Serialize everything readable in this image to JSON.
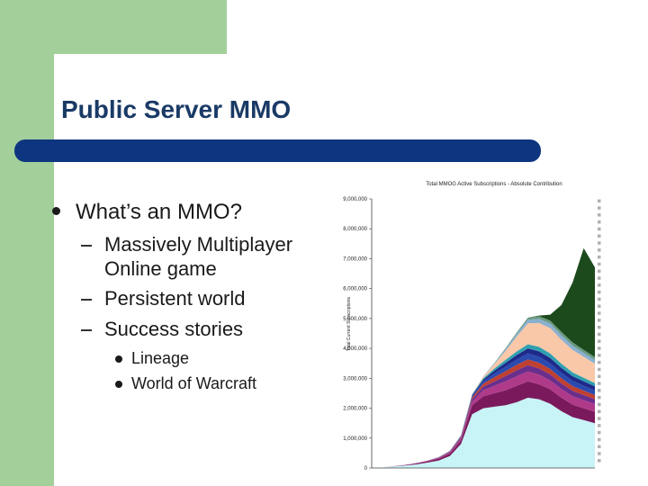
{
  "slide": {
    "title": "Public Server MMO",
    "bullet": "What’s an MMO?",
    "sub_bullets": [
      "Massively Multiplayer",
      "Online game",
      "Persistent world",
      "Success stories"
    ],
    "sub_sub_bullets": [
      "Lineage",
      "World of Warcraft"
    ]
  },
  "chart_data": {
    "type": "area",
    "title": "Total MMOG Active Subscriptions - Absolute Contribution",
    "xlabel": "",
    "ylabel": "Total Current Subscriptions",
    "ylim": [
      0,
      9000000
    ],
    "y_ticks": [
      "0",
      "1,000,000",
      "2,000,000",
      "3,000,000",
      "4,000,000",
      "5,000,000",
      "6,000,000",
      "7,000,000",
      "8,000,000",
      "9,000,000"
    ],
    "x": [
      0,
      0.05,
      0.1,
      0.15,
      0.2,
      0.25,
      0.3,
      0.35,
      0.4,
      0.45,
      0.5,
      0.55,
      0.6,
      0.65,
      0.7,
      0.75,
      0.8,
      0.85,
      0.9,
      0.95,
      1.0
    ],
    "series": [
      {
        "name": "",
        "color": "#c8f4f8",
        "values": [
          0,
          20000,
          50000,
          80000,
          120000,
          180000,
          250000,
          400000,
          800000,
          1800000,
          2000000,
          2050000,
          2100000,
          2200000,
          2350000,
          2300000,
          2150000,
          1900000,
          1700000,
          1600000,
          1500000
        ]
      },
      {
        "name": "",
        "color": "#7a1a5c",
        "values": [
          0,
          5000,
          10000,
          20000,
          30000,
          40000,
          60000,
          80000,
          120000,
          300000,
          400000,
          450000,
          500000,
          550000,
          550000,
          500000,
          480000,
          450000,
          420000,
          400000,
          380000
        ]
      },
      {
        "name": "",
        "color": "#b03a8a",
        "values": [
          0,
          0,
          0,
          5000,
          10000,
          15000,
          20000,
          40000,
          60000,
          120000,
          200000,
          250000,
          300000,
          320000,
          330000,
          320000,
          300000,
          290000,
          280000,
          270000,
          260000
        ]
      },
      {
        "name": "",
        "color": "#6a2e8c",
        "values": [
          0,
          0,
          0,
          0,
          5000,
          10000,
          15000,
          20000,
          40000,
          80000,
          120000,
          150000,
          180000,
          200000,
          210000,
          210000,
          200000,
          190000,
          180000,
          170000,
          160000
        ]
      },
      {
        "name": "",
        "color": "#c04030",
        "values": [
          0,
          0,
          0,
          0,
          0,
          5000,
          10000,
          15000,
          30000,
          60000,
          100000,
          140000,
          160000,
          180000,
          190000,
          190000,
          180000,
          170000,
          160000,
          150000,
          140000
        ]
      },
      {
        "name": "",
        "color": "#2a4ab0",
        "values": [
          0,
          0,
          0,
          0,
          0,
          0,
          5000,
          10000,
          20000,
          50000,
          80000,
          120000,
          150000,
          180000,
          200000,
          200000,
          190000,
          180000,
          170000,
          160000,
          150000
        ]
      },
      {
        "name": "",
        "color": "#1e2a8a",
        "values": [
          0,
          0,
          0,
          0,
          0,
          0,
          0,
          5000,
          10000,
          30000,
          60000,
          100000,
          130000,
          150000,
          170000,
          180000,
          180000,
          170000,
          160000,
          150000,
          140000
        ]
      },
      {
        "name": "",
        "color": "#30a0b0",
        "values": [
          0,
          0,
          0,
          0,
          0,
          0,
          0,
          0,
          5000,
          20000,
          40000,
          70000,
          100000,
          120000,
          140000,
          150000,
          150000,
          140000,
          130000,
          120000,
          110000
        ]
      },
      {
        "name": "",
        "color": "#f8c8a8",
        "values": [
          0,
          0,
          0,
          0,
          0,
          0,
          0,
          0,
          0,
          10000,
          50000,
          150000,
          300000,
          500000,
          700000,
          800000,
          850000,
          800000,
          750000,
          700000,
          650000
        ]
      },
      {
        "name": "",
        "color": "#8ab0d0",
        "values": [
          0,
          0,
          0,
          0,
          0,
          0,
          0,
          0,
          0,
          0,
          10000,
          30000,
          60000,
          90000,
          120000,
          140000,
          150000,
          150000,
          140000,
          130000,
          120000
        ]
      },
      {
        "name": "",
        "color": "#6a9a80",
        "values": [
          0,
          0,
          0,
          0,
          0,
          0,
          0,
          0,
          0,
          0,
          0,
          10000,
          30000,
          50000,
          70000,
          90000,
          100000,
          110000,
          110000,
          100000,
          100000
        ]
      },
      {
        "name": "",
        "color": "#1c4a1c",
        "values": [
          0,
          0,
          0,
          0,
          0,
          0,
          0,
          0,
          0,
          0,
          0,
          0,
          0,
          0,
          0,
          20000,
          200000,
          900000,
          2000000,
          3400000,
          3000000
        ]
      }
    ],
    "legend": {
      "placement": "right",
      "entries": [
        "",
        "",
        "",
        "",
        "",
        "",
        "",
        "",
        "",
        "",
        "",
        "",
        "",
        "",
        "",
        "",
        "",
        "",
        "",
        "",
        "",
        "",
        "",
        "",
        "",
        "",
        "",
        "",
        "",
        "",
        "",
        "",
        "",
        "",
        "",
        "",
        "",
        ""
      ]
    },
    "colors": {
      "swatch": "#b0b0b0",
      "axis": "#444444"
    }
  }
}
